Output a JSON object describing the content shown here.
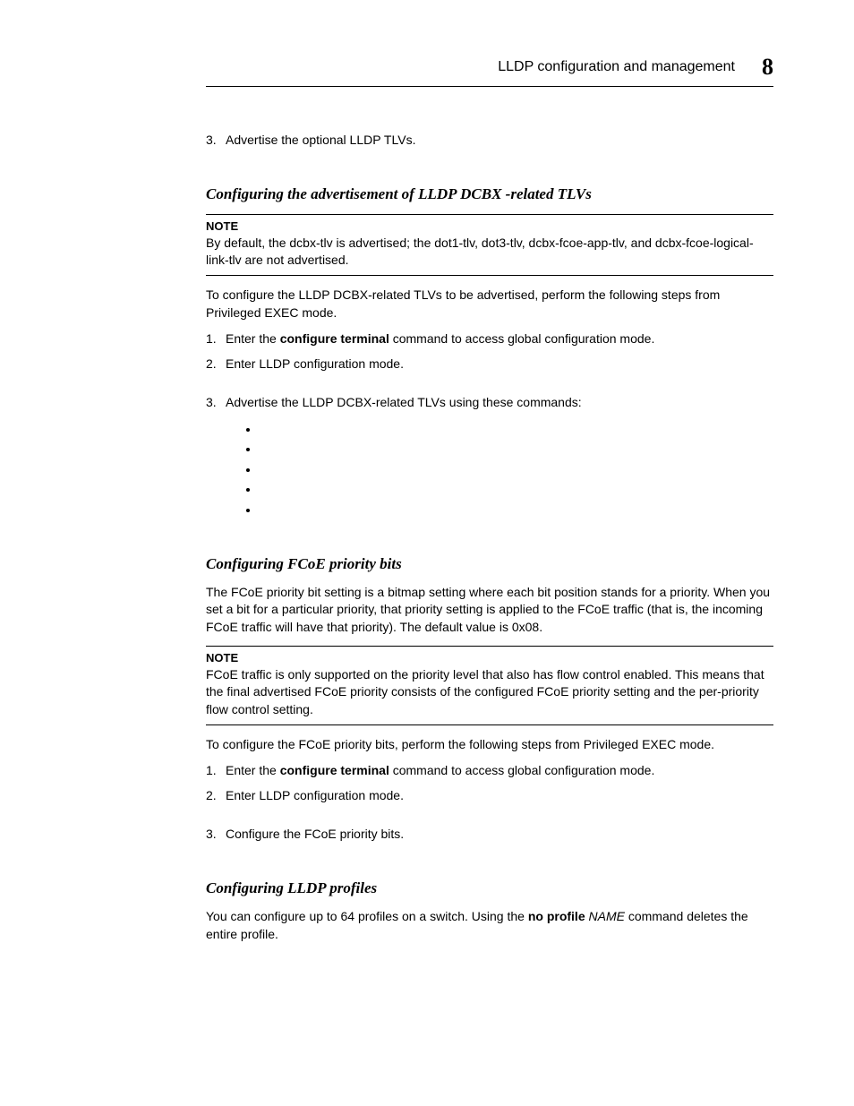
{
  "header": {
    "title": "LLDP configuration and management",
    "chapter_number": "8"
  },
  "first_list": {
    "item3_num": "3.",
    "item3_text": "Advertise the optional LLDP TLVs."
  },
  "section1": {
    "heading": "Configuring the advertisement of LLDP DCBX -related TLVs",
    "note_label": "NOTE",
    "note_text": "By default, the dcbx-tlv is advertised; the dot1-tlv, dot3-tlv, dcbx-fcoe-app-tlv, and dcbx-fcoe-logical-link-tlv are not advertised.",
    "intro": "To configure the LLDP DCBX-related TLVs to be advertised, perform the following steps from Privileged EXEC mode.",
    "step1_num": "1.",
    "step1_pre": "Enter the ",
    "step1_bold": "configure terminal",
    "step1_post": " command to access global configuration mode.",
    "step2_num": "2.",
    "step2_text": "Enter LLDP configuration mode.",
    "step3_num": "3.",
    "step3_text": "Advertise the LLDP DCBX-related TLVs using these commands:"
  },
  "section2": {
    "heading": "Configuring FCoE priority bits",
    "intro": "The FCoE priority bit setting is a bitmap setting where each bit position stands for a priority. When you set a bit for a particular priority, that priority setting is applied to the FCoE traffic (that is, the incoming FCoE traffic will have that priority). The default value is 0x08.",
    "note_label": "NOTE",
    "note_text": "FCoE traffic is only supported on the priority level that also has flow control enabled. This means that the final advertised FCoE priority consists of the configured FCoE priority setting and the per-priority flow control setting.",
    "para2": "To configure the FCoE priority bits, perform the following steps from Privileged EXEC mode.",
    "step1_num": "1.",
    "step1_pre": "Enter the ",
    "step1_bold": "configure terminal",
    "step1_post": " command to access global configuration mode.",
    "step2_num": "2.",
    "step2_text": "Enter LLDP configuration mode.",
    "step3_num": "3.",
    "step3_text": "Configure the FCoE priority bits."
  },
  "section3": {
    "heading": "Configuring LLDP profiles",
    "para_pre": "You can configure up to 64 profiles on a switch. Using the ",
    "para_bold": "no profile",
    "para_mid": " ",
    "para_italic": "NAME",
    "para_post": " command deletes the entire profile."
  }
}
